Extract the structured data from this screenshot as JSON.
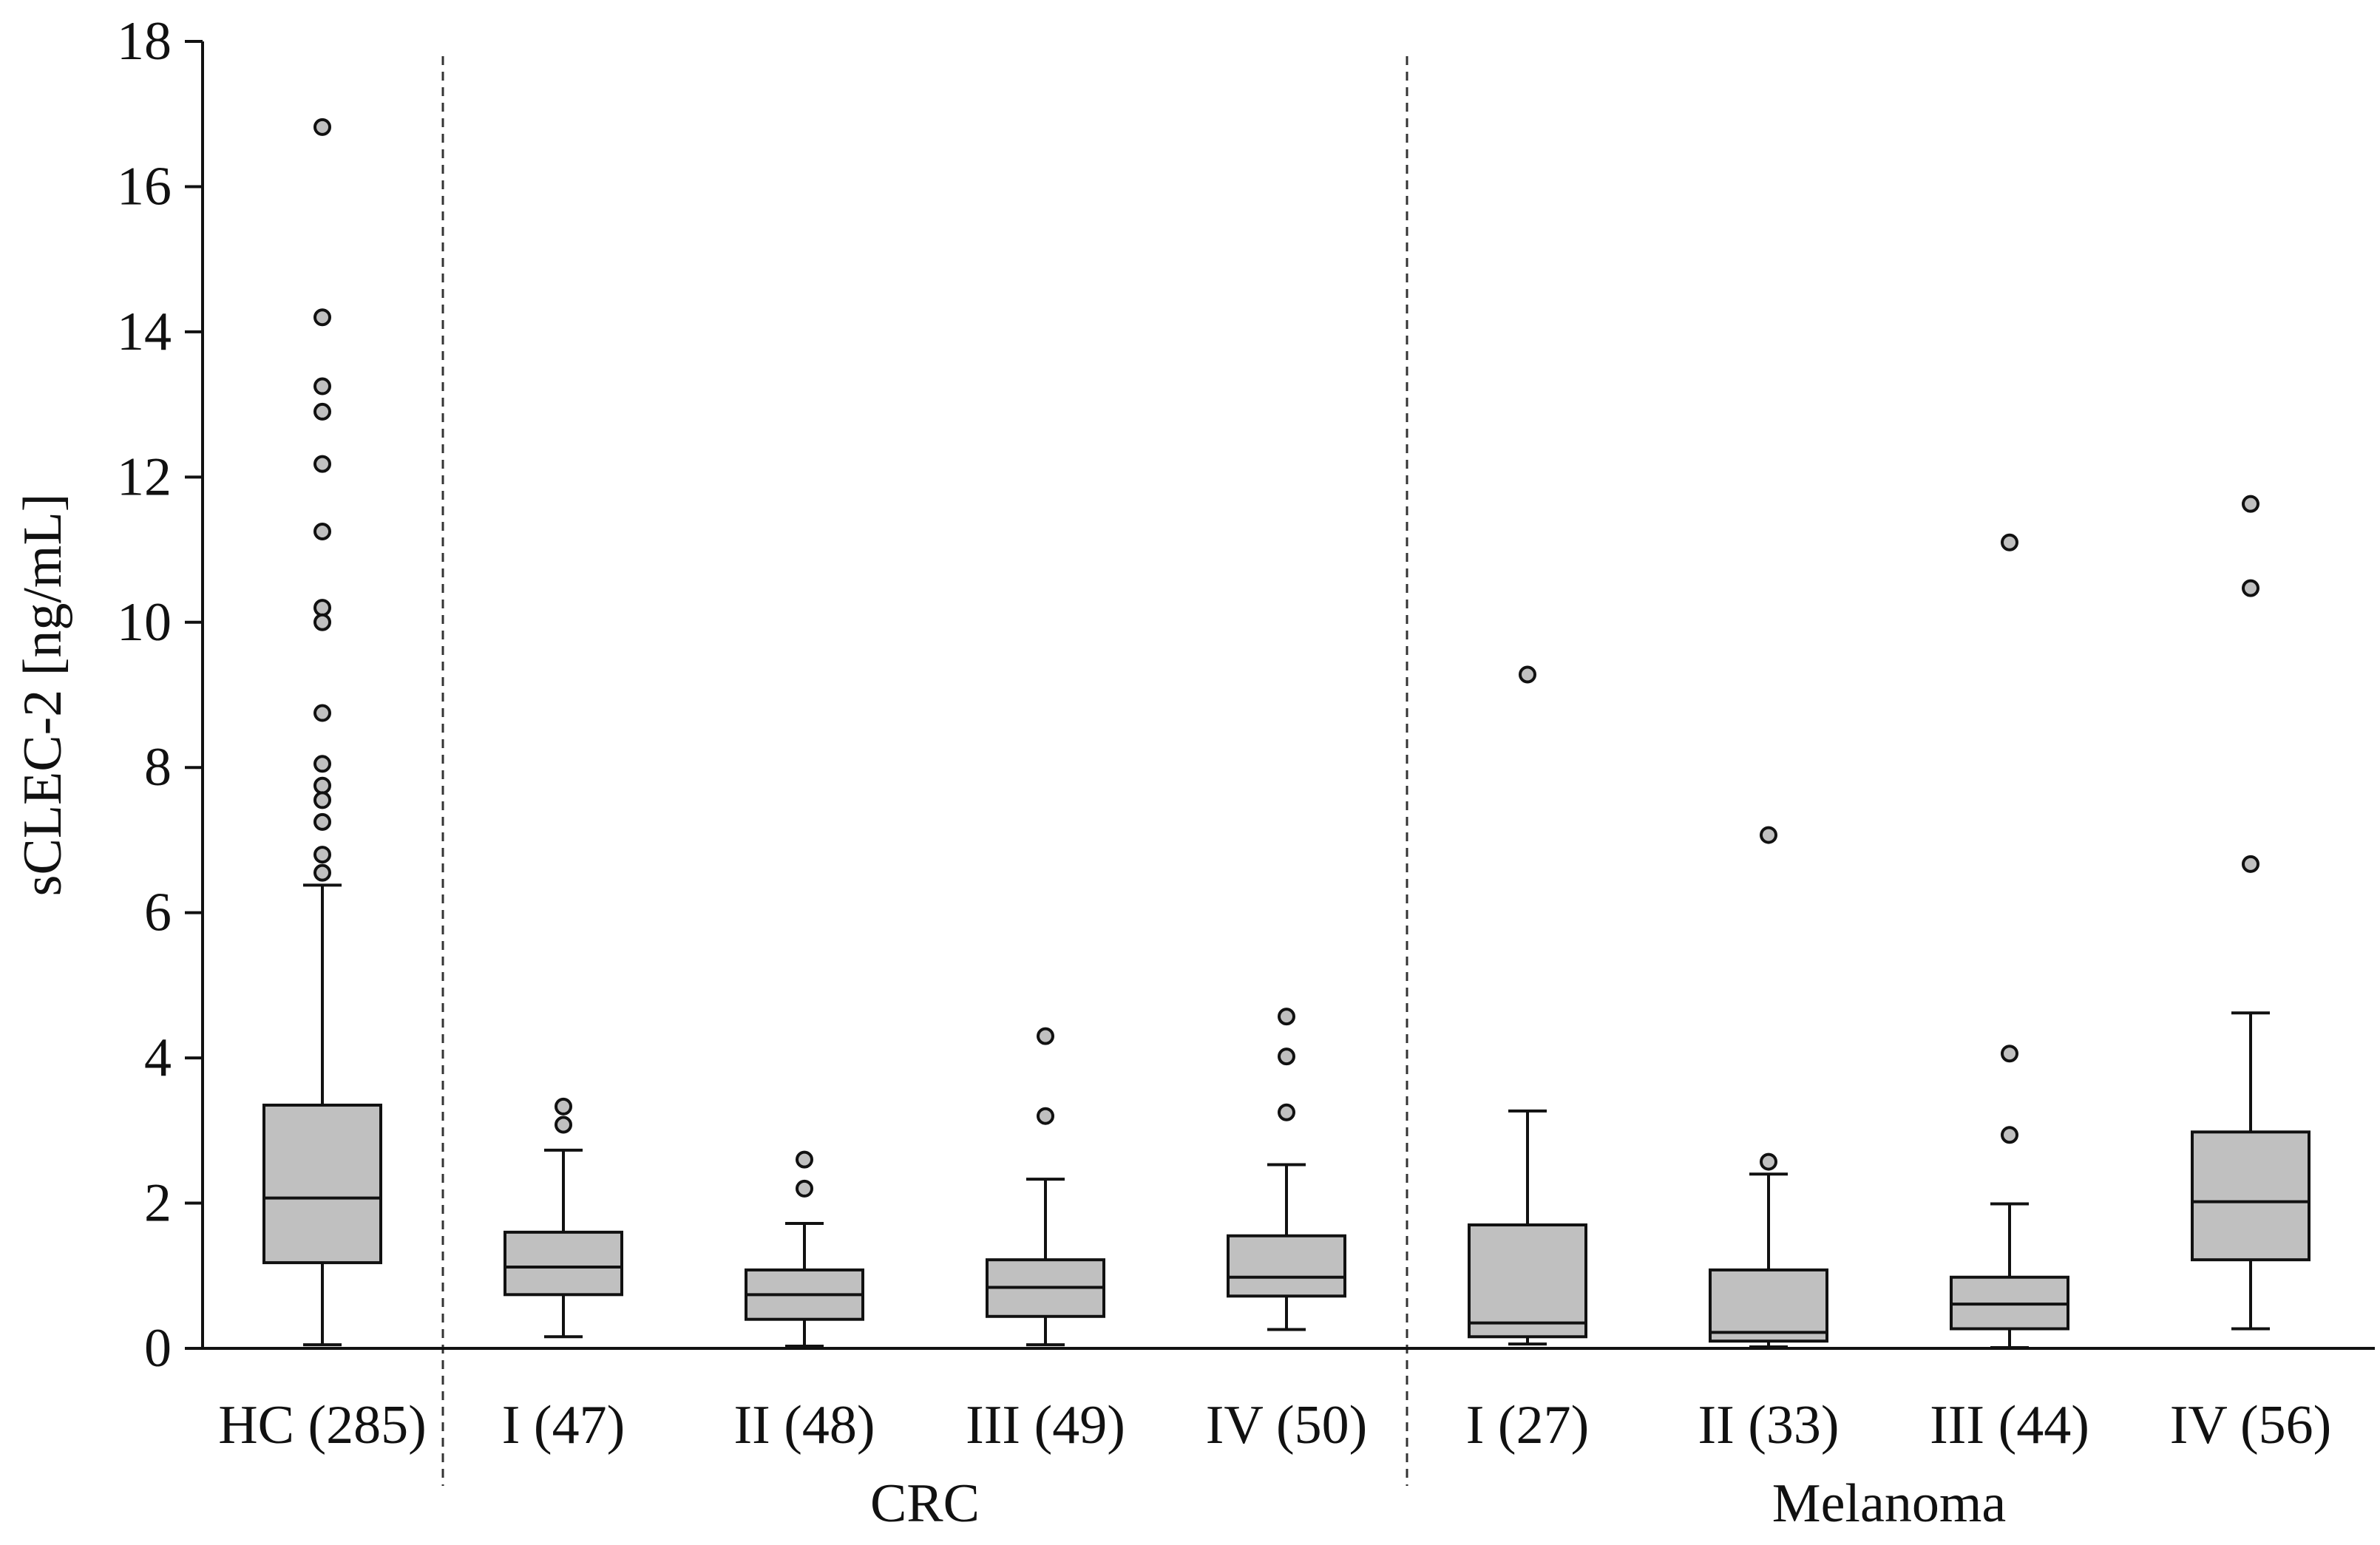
{
  "chart_data": {
    "type": "box",
    "ylabel": "sCLEC-2 [ng/mL]",
    "xlabel": "",
    "ylim": [
      0,
      18
    ],
    "yticks": [
      0,
      2,
      4,
      6,
      8,
      10,
      12,
      14,
      16,
      18
    ],
    "grid": false,
    "style": {
      "box_fill": "#c0c0c0",
      "outlier_fill": "#c0c0c0",
      "stroke": "#111111",
      "separator": "#333333"
    },
    "groups": [
      {
        "label": "",
        "categories": [
          "HC (285)"
        ]
      },
      {
        "label": "CRC",
        "categories": [
          "I (47)",
          "II (48)",
          "III (49)",
          "IV (50)"
        ]
      },
      {
        "label": "Melanoma",
        "categories": [
          "I (27)",
          "II (33)",
          "III (44)",
          "IV (56)"
        ]
      }
    ],
    "boxes": [
      {
        "label": "HC (285)",
        "min": 0.05,
        "q1": 1.18,
        "median": 2.07,
        "q3": 3.35,
        "max": 6.38,
        "outliers": [
          16.82,
          14.2,
          13.25,
          12.9,
          12.18,
          11.25,
          10.2,
          10.0,
          8.75,
          8.05,
          7.75,
          7.55,
          7.25,
          6.8,
          6.55
        ]
      },
      {
        "label": "I (47)",
        "min": 0.16,
        "q1": 0.74,
        "median": 1.12,
        "q3": 1.6,
        "max": 2.73,
        "outliers": [
          3.33,
          3.08
        ]
      },
      {
        "label": "II (48)",
        "min": 0.03,
        "q1": 0.4,
        "median": 0.74,
        "q3": 1.08,
        "max": 1.72,
        "outliers": [
          2.6,
          2.2
        ]
      },
      {
        "label": "III (49)",
        "min": 0.05,
        "q1": 0.44,
        "median": 0.84,
        "q3": 1.22,
        "max": 2.33,
        "outliers": [
          4.3,
          3.2
        ]
      },
      {
        "label": "IV (50)",
        "min": 0.26,
        "q1": 0.72,
        "median": 0.98,
        "q3": 1.55,
        "max": 2.53,
        "outliers": [
          4.57,
          4.02,
          3.25
        ]
      },
      {
        "label": "I (27)",
        "min": 0.06,
        "q1": 0.16,
        "median": 0.35,
        "q3": 1.7,
        "max": 3.27,
        "outliers": [
          9.28
        ]
      },
      {
        "label": "II (33)",
        "min": 0.02,
        "q1": 0.1,
        "median": 0.22,
        "q3": 1.08,
        "max": 2.4,
        "outliers": [
          7.07,
          2.57
        ]
      },
      {
        "label": "III (44)",
        "min": 0.01,
        "q1": 0.27,
        "median": 0.61,
        "q3": 0.98,
        "max": 1.99,
        "outliers": [
          11.1,
          4.06,
          2.94
        ]
      },
      {
        "label": "IV (56)",
        "min": 0.27,
        "q1": 1.22,
        "median": 2.02,
        "q3": 2.98,
        "max": 4.62,
        "outliers": [
          11.63,
          10.47,
          6.67
        ]
      }
    ]
  }
}
